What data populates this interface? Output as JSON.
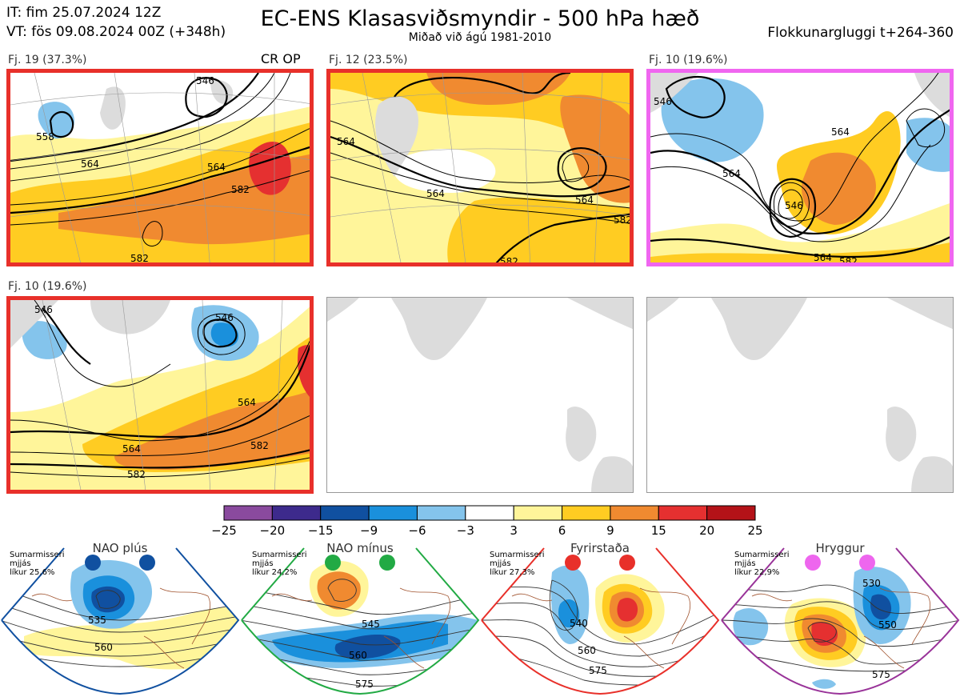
{
  "header": {
    "it": "IT: fim 25.07.2024 12Z",
    "vt": "VT: fös 09.08.2024 00Z  (+348h)",
    "title": "EC-ENS Klasasviðsmyndir - 500 hPa hæð",
    "subtitle": "Miðað við ágú 1981-2010",
    "window": "Flokkunargluggi t+264-360"
  },
  "clusters": [
    {
      "label": "Fj. 19 (37.3%)",
      "tag": "CR OP",
      "border": "#e8302a",
      "contours": [
        "546",
        "564",
        "564",
        "582",
        "582",
        "558"
      ]
    },
    {
      "label": "Fj. 12 (23.5%)",
      "tag": "",
      "border": "#e8302a",
      "contours": [
        "564",
        "564",
        "564",
        "582",
        "582"
      ]
    },
    {
      "label": "Fj. 10 (19.6%)",
      "tag": "",
      "border": "#f066f0",
      "contours": [
        "546",
        "564",
        "564",
        "546",
        "564",
        "582"
      ]
    },
    {
      "label": "Fj. 10 (19.6%)",
      "tag": "",
      "border": "#e8302a",
      "contours": [
        "546",
        "564",
        "564",
        "582",
        "582",
        "546"
      ]
    }
  ],
  "colorbar": {
    "ticks": [
      "−25",
      "−20",
      "−15",
      "−9",
      "−6",
      "−3",
      "3",
      "6",
      "9",
      "15",
      "20",
      "25"
    ],
    "colors": [
      "#8a4a9e",
      "#3d2a8c",
      "#1050a0",
      "#1a90dc",
      "#84c4ec",
      "#ffffff",
      "#fff59a",
      "#ffcc22",
      "#f08a30",
      "#e53030",
      "#b41218"
    ]
  },
  "regimes": [
    {
      "name": "NAO plús",
      "season": "Sumarmisseri",
      "avg": "mjjás",
      "prob": "líkur 25,6%",
      "color": "#1050a0",
      "contours": [
        "535",
        "560"
      ]
    },
    {
      "name": "NAO mínus",
      "season": "Sumarmisseri",
      "avg": "mjjás",
      "prob": "líkur 24,2%",
      "color": "#22aa44",
      "contours": [
        "545",
        "560",
        "575"
      ]
    },
    {
      "name": "Fyrirstaða",
      "season": "Sumarmisseri",
      "avg": "mjjás",
      "prob": "líkur 27,3%",
      "color": "#e8302a",
      "contours": [
        "540",
        "560",
        "575"
      ]
    },
    {
      "name": "Hryggur",
      "season": "Sumarmisseri",
      "avg": "mjjás",
      "prob": "líkur 22,9%",
      "color": "#ee66ee",
      "contours": [
        "530",
        "550",
        "575"
      ]
    }
  ]
}
